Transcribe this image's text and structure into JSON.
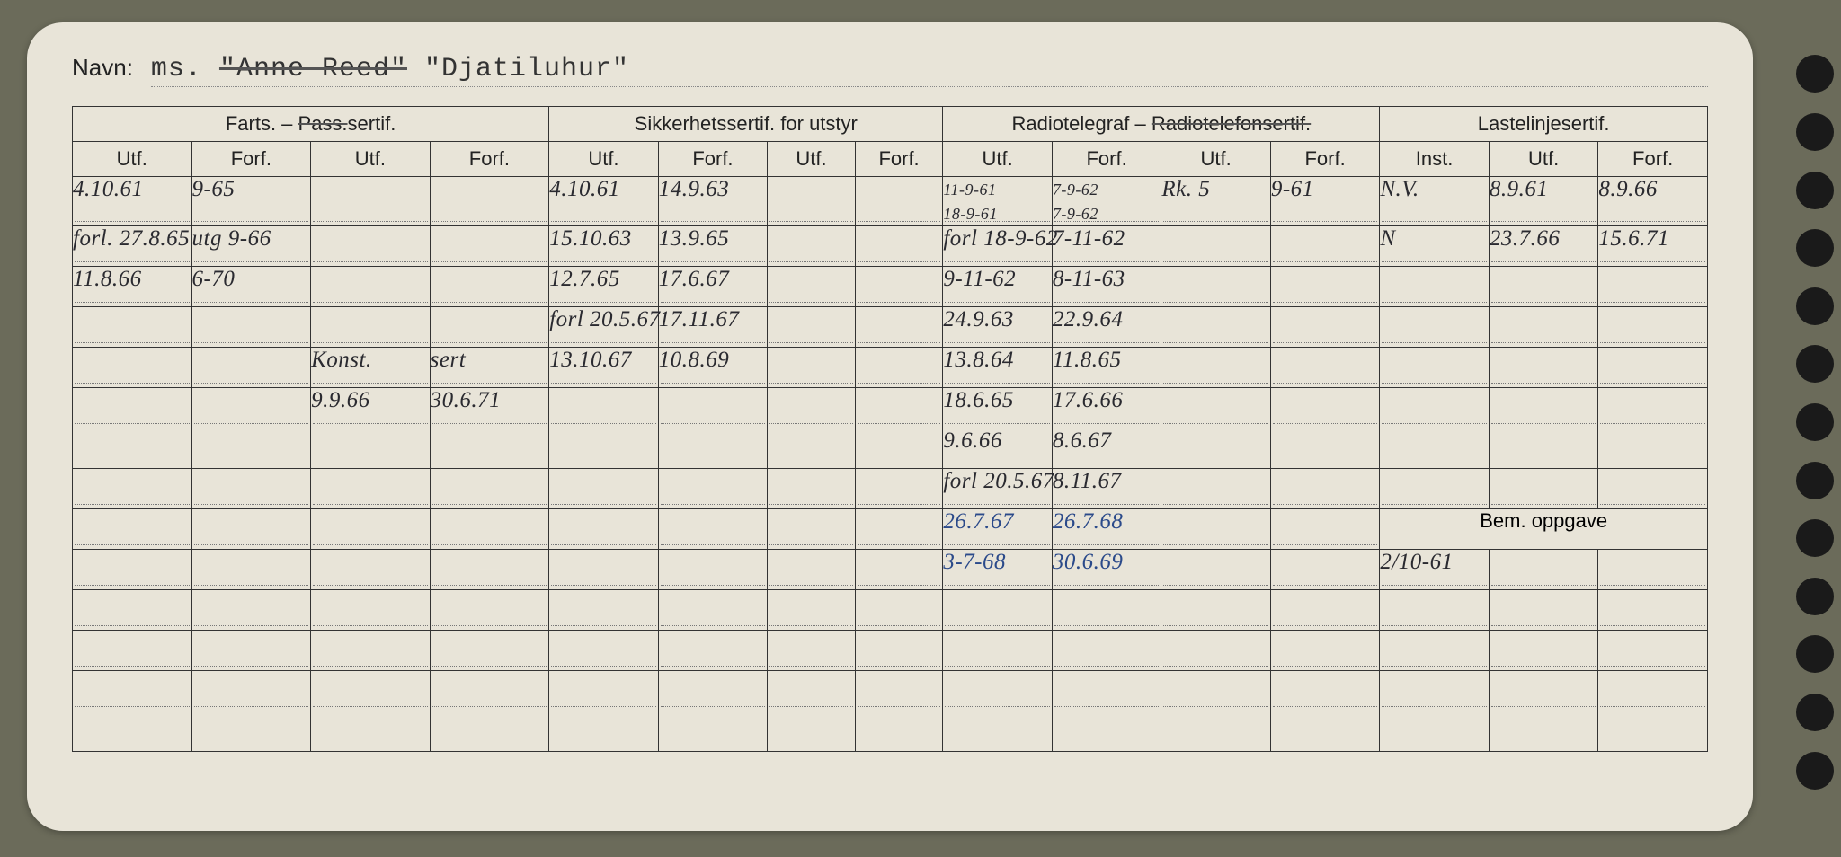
{
  "background_color": "#6b6b5a",
  "card_color": "#e8e4d8",
  "ink_color": "#2a2a30",
  "blue_ink": "#2b4a8a",
  "navn_label": "Navn:",
  "navn_value_prefix": "ms.",
  "navn_strikeout": "\"Anne Reed\"",
  "navn_value_suffix": "\"Djatiluhur\"",
  "groups": [
    {
      "label": "Farts. – ",
      "strike": "Pass.",
      "suffix": "sertif.",
      "span": 4
    },
    {
      "label": "Sikkerhetssertif. for utstyr",
      "span": 4
    },
    {
      "label": "Radiotelegraf – ",
      "strike": "Radiotelefonsertif.",
      "span": 4
    },
    {
      "label": "Lastelinjesertif.",
      "span": 3
    }
  ],
  "sub_headers": [
    "Utf.",
    "Forf.",
    "Utf.",
    "Forf.",
    "Utf.",
    "Forf.",
    "Utf.",
    "Forf.",
    "Utf.",
    "Forf.",
    "Utf.",
    "Forf.",
    "Inst.",
    "Utf.",
    "Forf."
  ],
  "bem_label": "Bem. oppgave",
  "rows": [
    {
      "cells": [
        "4.10.61",
        "9-65",
        "",
        "",
        "4.10.61",
        "14.9.63",
        "",
        "",
        "11-9-61\n18-9-61",
        "7-9-62\n7-9-62",
        "Rk. 5",
        "9-61",
        "N.V.",
        "8.9.61",
        "8.9.66"
      ]
    },
    {
      "cells": [
        "forl. 27.8.65",
        "utg 9-66",
        "",
        "",
        "15.10.63",
        "13.9.65",
        "",
        "",
        "forl 18-9-62",
        "7-11-62",
        "",
        "",
        "N",
        "23.7.66",
        "15.6.71"
      ]
    },
    {
      "cells": [
        "11.8.66",
        "6-70",
        "",
        "",
        "12.7.65",
        "17.6.67",
        "",
        "",
        "9-11-62",
        "8-11-63",
        "",
        "",
        "",
        "",
        ""
      ]
    },
    {
      "cells": [
        "",
        "",
        "",
        "",
        "forl 20.5.67",
        "17.11.67",
        "",
        "",
        "24.9.63",
        "22.9.64",
        "",
        "",
        "",
        "",
        ""
      ]
    },
    {
      "cells": [
        "",
        "",
        "Konst.",
        "sert",
        "13.10.67",
        "10.8.69",
        "",
        "",
        "13.8.64",
        "11.8.65",
        "",
        "",
        "",
        "",
        ""
      ]
    },
    {
      "cells": [
        "",
        "",
        "9.9.66",
        "30.6.71",
        "",
        "",
        "",
        "",
        "18.6.65",
        "17.6.66",
        "",
        "",
        "",
        "",
        ""
      ]
    },
    {
      "cells": [
        "",
        "",
        "",
        "",
        "",
        "",
        "",
        "",
        "9.6.66",
        "8.6.67",
        "",
        "",
        "",
        "",
        ""
      ]
    },
    {
      "cells": [
        "",
        "",
        "",
        "",
        "",
        "",
        "",
        "",
        "forl 20.5.67",
        "8.11.67",
        "",
        "",
        "",
        "",
        ""
      ]
    },
    {
      "cells": [
        "",
        "",
        "",
        "",
        "",
        "",
        "",
        "",
        "26.7.67",
        "26.7.68",
        "",
        "",
        "",
        "",
        ""
      ],
      "blue_cols": [
        8,
        9
      ]
    },
    {
      "cells": [
        "",
        "",
        "",
        "",
        "",
        "",
        "",
        "",
        "3-7-68",
        "30.6.69",
        "",
        "",
        "2/10-61",
        "",
        ""
      ],
      "blue_cols": [
        8,
        9
      ]
    },
    {
      "cells": [
        "",
        "",
        "",
        "",
        "",
        "",
        "",
        "",
        "",
        "",
        "",
        "",
        "",
        "",
        ""
      ]
    },
    {
      "cells": [
        "",
        "",
        "",
        "",
        "",
        "",
        "",
        "",
        "",
        "",
        "",
        "",
        "",
        "",
        ""
      ]
    },
    {
      "cells": [
        "",
        "",
        "",
        "",
        "",
        "",
        "",
        "",
        "",
        "",
        "",
        "",
        "",
        "",
        ""
      ]
    },
    {
      "cells": [
        "",
        "",
        "",
        "",
        "",
        "",
        "",
        "",
        "",
        "",
        "",
        "",
        "",
        "",
        ""
      ]
    }
  ],
  "bem_row_index": 8,
  "num_holes": 13
}
